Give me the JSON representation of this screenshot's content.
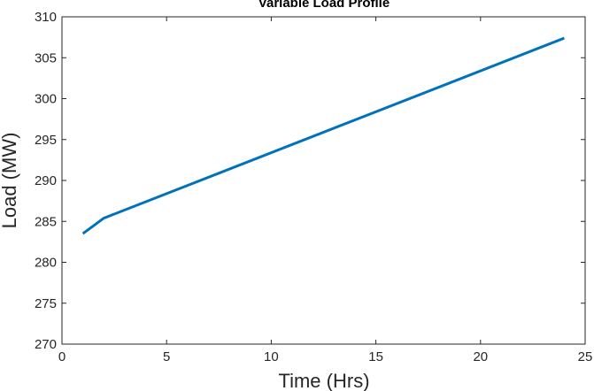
{
  "chart_data": {
    "type": "line",
    "title": "Variable Load Profile",
    "xlabel": "Time (Hrs)",
    "ylabel": "Load (MW)",
    "xlim": [
      0,
      25
    ],
    "ylim": [
      270,
      310
    ],
    "xticks": [
      0,
      5,
      10,
      15,
      20,
      25
    ],
    "yticks": [
      270,
      275,
      280,
      285,
      290,
      295,
      300,
      305,
      310
    ],
    "grid": false,
    "series": [
      {
        "color": "#0072BD",
        "x": [
          1,
          2,
          24
        ],
        "y": [
          283.5,
          285.4,
          307.4
        ]
      }
    ]
  }
}
